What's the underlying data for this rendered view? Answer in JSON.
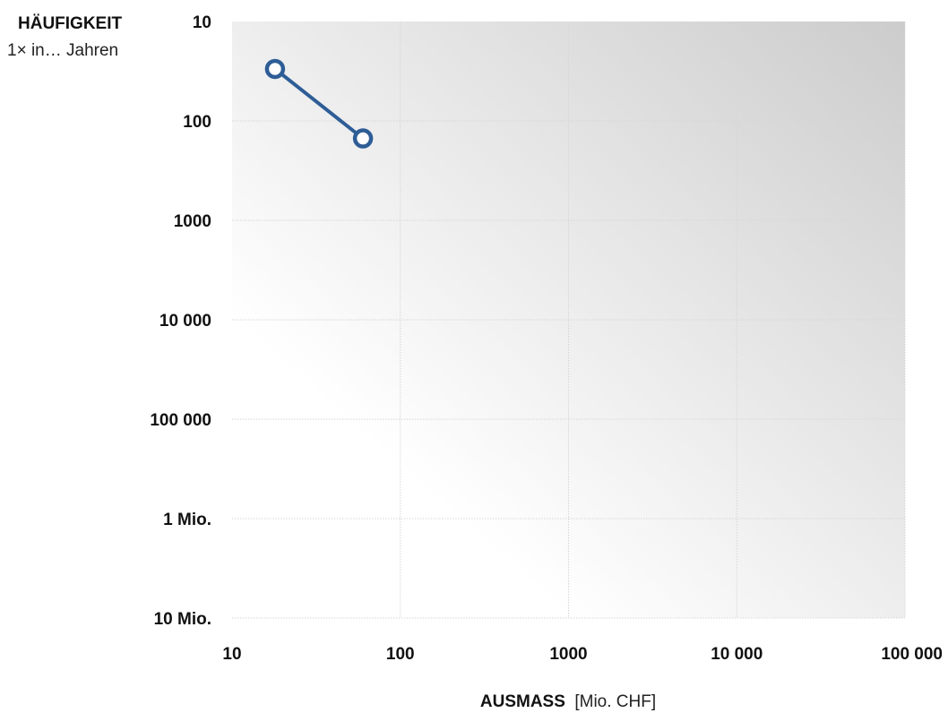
{
  "chart_data": {
    "type": "line",
    "ylabel": "HÄUFIGKEIT",
    "ylabel_sub": "1× in… Jahren",
    "xlabel": "AUSMASS",
    "xlabel_unit": "[Mio. CHF]",
    "x_scale": "log",
    "y_scale": "log",
    "y_inverted": true,
    "xlim": [
      10,
      100000
    ],
    "ylim": [
      10,
      10000000
    ],
    "grid": true,
    "x_ticks": [
      {
        "value": 10,
        "label": "10"
      },
      {
        "value": 100,
        "label": "100"
      },
      {
        "value": 1000,
        "label": "1000"
      },
      {
        "value": 10000,
        "label": "10 000"
      },
      {
        "value": 100000,
        "label": "100 000"
      }
    ],
    "y_ticks": [
      {
        "value": 10,
        "label": "10"
      },
      {
        "value": 100,
        "label": "100"
      },
      {
        "value": 1000,
        "label": "1000"
      },
      {
        "value": 10000,
        "label": "10 000"
      },
      {
        "value": 100000,
        "label": "100 000"
      },
      {
        "value": 1000000,
        "label": "1 Mio."
      },
      {
        "value": 10000000,
        "label": "10 Mio."
      }
    ],
    "series": [
      {
        "color": "#2e5d96",
        "points": [
          {
            "x": 18,
            "y": 30
          },
          {
            "x": 60,
            "y": 150
          }
        ]
      }
    ],
    "background_gradient": [
      "#cccccc",
      "#ffffff"
    ]
  }
}
